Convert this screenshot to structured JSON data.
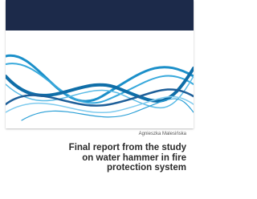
{
  "author": "Agnieszka Malesińska",
  "title_lines": [
    "Final report from the study",
    "on water hammer in fire",
    "protection system"
  ]
}
